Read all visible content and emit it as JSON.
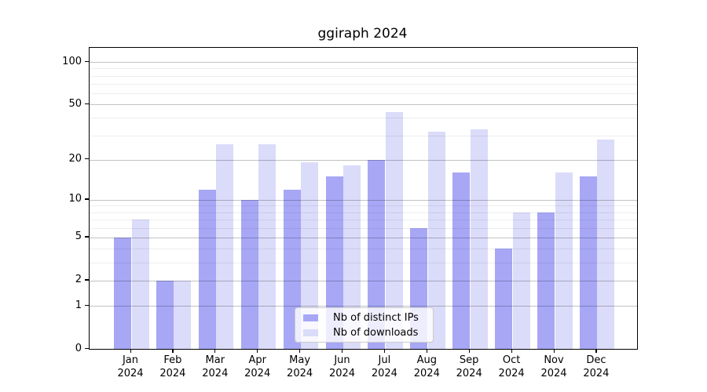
{
  "chart_data": {
    "type": "bar",
    "title": "ggiraph 2024",
    "categories": [
      "Jan",
      "Feb",
      "Mar",
      "Apr",
      "May",
      "Jun",
      "Jul",
      "Aug",
      "Sep",
      "Oct",
      "Nov",
      "Dec"
    ],
    "year_label": "2024",
    "series": [
      {
        "name": "Nb of distinct IPs",
        "color": "#a7a7f6",
        "values": [
          5,
          2,
          12,
          10,
          12,
          15,
          20,
          6,
          16,
          4,
          8,
          15
        ]
      },
      {
        "name": "Nb of downloads",
        "color": "#dbdbfa",
        "values": [
          7,
          2,
          26,
          26,
          19,
          18,
          44,
          32,
          33,
          8,
          16,
          28
        ]
      }
    ],
    "xlabel": "",
    "ylabel": "",
    "yscale": "log1p",
    "ylim": [
      0,
      126
    ],
    "yticks": [
      0,
      1,
      2,
      5,
      10,
      20,
      50,
      100
    ],
    "yticks_minor": [
      3,
      4,
      6,
      7,
      8,
      9,
      30,
      40,
      60,
      70,
      80,
      90
    ],
    "grid": true,
    "legend_position": "lower center"
  }
}
